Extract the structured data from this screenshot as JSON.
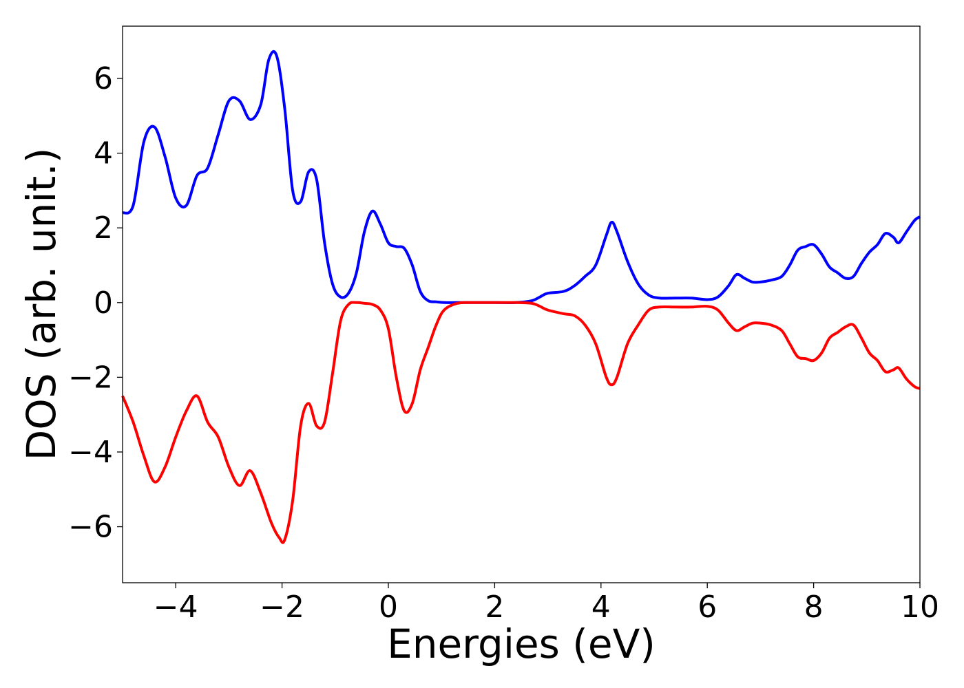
{
  "chart_data": {
    "type": "line",
    "title": "",
    "xlabel": "Energies (eV)",
    "ylabel": "DOS (arb. unit.)",
    "xlim": [
      -5,
      10
    ],
    "ylim": [
      -7.5,
      7.4
    ],
    "grid": false,
    "xticks": [
      -4,
      -2,
      0,
      2,
      4,
      6,
      8,
      10
    ],
    "xtick_labels": [
      "−4",
      "−2",
      "0",
      "2",
      "4",
      "6",
      "8",
      "10"
    ],
    "yticks": [
      -6,
      -4,
      -2,
      0,
      2,
      4,
      6
    ],
    "ytick_labels": [
      "−6",
      "−4",
      "−2",
      "0",
      "2",
      "4",
      "6"
    ],
    "series": [
      {
        "color": "#0000ff",
        "x": [
          -5.0,
          -4.8,
          -4.6,
          -4.4,
          -4.2,
          -4.0,
          -3.8,
          -3.6,
          -3.4,
          -3.2,
          -3.0,
          -2.8,
          -2.6,
          -2.4,
          -2.25,
          -2.1,
          -1.95,
          -1.8,
          -1.65,
          -1.5,
          -1.35,
          -1.2,
          -1.05,
          -0.9,
          -0.75,
          -0.6,
          -0.45,
          -0.3,
          -0.15,
          0.0,
          0.15,
          0.3,
          0.45,
          0.6,
          0.75,
          0.9,
          1.05,
          1.3,
          1.6,
          2.0,
          2.4,
          2.7,
          2.85,
          3.0,
          3.3,
          3.5,
          3.7,
          3.9,
          4.1,
          4.2,
          4.3,
          4.5,
          4.7,
          4.9,
          5.1,
          5.4,
          5.7,
          6.0,
          6.2,
          6.4,
          6.55,
          6.7,
          6.85,
          7.0,
          7.2,
          7.4,
          7.55,
          7.7,
          7.85,
          8.0,
          8.15,
          8.3,
          8.45,
          8.6,
          8.75,
          8.9,
          9.05,
          9.2,
          9.35,
          9.5,
          9.6,
          9.75,
          9.9,
          10.0
        ],
        "y": [
          2.4,
          2.6,
          4.3,
          4.7,
          3.9,
          2.8,
          2.6,
          3.4,
          3.6,
          4.5,
          5.4,
          5.4,
          4.9,
          5.3,
          6.5,
          6.6,
          5.2,
          3.0,
          2.7,
          3.5,
          3.3,
          1.6,
          0.5,
          0.15,
          0.25,
          0.8,
          1.9,
          2.45,
          2.1,
          1.6,
          1.5,
          1.45,
          1.0,
          0.3,
          0.05,
          0.02,
          0.0,
          0.0,
          0.0,
          0.0,
          0.0,
          0.05,
          0.15,
          0.25,
          0.3,
          0.45,
          0.7,
          1.0,
          1.8,
          2.15,
          1.9,
          1.1,
          0.5,
          0.2,
          0.12,
          0.12,
          0.12,
          0.08,
          0.15,
          0.45,
          0.75,
          0.65,
          0.55,
          0.55,
          0.6,
          0.7,
          1.0,
          1.4,
          1.5,
          1.55,
          1.3,
          0.95,
          0.8,
          0.65,
          0.7,
          1.05,
          1.35,
          1.55,
          1.85,
          1.75,
          1.6,
          1.9,
          2.2,
          2.3
        ]
      },
      {
        "color": "#ff0000",
        "x": [
          -5.0,
          -4.8,
          -4.6,
          -4.4,
          -4.2,
          -4.0,
          -3.8,
          -3.6,
          -3.4,
          -3.2,
          -3.0,
          -2.8,
          -2.6,
          -2.4,
          -2.2,
          -2.05,
          -1.95,
          -1.8,
          -1.65,
          -1.5,
          -1.35,
          -1.2,
          -1.05,
          -0.9,
          -0.75,
          -0.6,
          -0.45,
          -0.3,
          -0.15,
          0.0,
          0.15,
          0.3,
          0.45,
          0.6,
          0.75,
          0.9,
          1.05,
          1.3,
          1.6,
          2.0,
          2.4,
          2.7,
          2.85,
          3.0,
          3.3,
          3.5,
          3.7,
          3.9,
          4.1,
          4.2,
          4.3,
          4.5,
          4.7,
          4.9,
          5.1,
          5.4,
          5.7,
          6.0,
          6.2,
          6.4,
          6.55,
          6.7,
          6.85,
          7.0,
          7.2,
          7.4,
          7.55,
          7.7,
          7.85,
          8.0,
          8.15,
          8.3,
          8.45,
          8.6,
          8.75,
          8.9,
          9.05,
          9.2,
          9.35,
          9.5,
          9.6,
          9.75,
          9.9,
          10.0
        ],
        "y": [
          -2.5,
          -3.2,
          -4.1,
          -4.8,
          -4.4,
          -3.6,
          -2.9,
          -2.5,
          -3.2,
          -3.6,
          -4.4,
          -4.9,
          -4.5,
          -5.1,
          -5.9,
          -6.3,
          -6.35,
          -5.3,
          -3.3,
          -2.7,
          -3.3,
          -3.2,
          -1.9,
          -0.5,
          -0.05,
          0.0,
          -0.02,
          -0.05,
          -0.2,
          -0.7,
          -2.0,
          -2.9,
          -2.7,
          -1.8,
          -1.2,
          -0.6,
          -0.2,
          -0.02,
          0.0,
          0.0,
          0.0,
          -0.02,
          -0.1,
          -0.2,
          -0.3,
          -0.35,
          -0.6,
          -1.1,
          -2.0,
          -2.2,
          -2.0,
          -1.1,
          -0.6,
          -0.2,
          -0.12,
          -0.12,
          -0.12,
          -0.1,
          -0.2,
          -0.55,
          -0.75,
          -0.65,
          -0.55,
          -0.55,
          -0.6,
          -0.75,
          -1.1,
          -1.45,
          -1.5,
          -1.55,
          -1.35,
          -0.95,
          -0.8,
          -0.65,
          -0.6,
          -0.95,
          -1.35,
          -1.55,
          -1.85,
          -1.8,
          -1.75,
          -2.05,
          -2.25,
          -2.3
        ]
      }
    ]
  }
}
